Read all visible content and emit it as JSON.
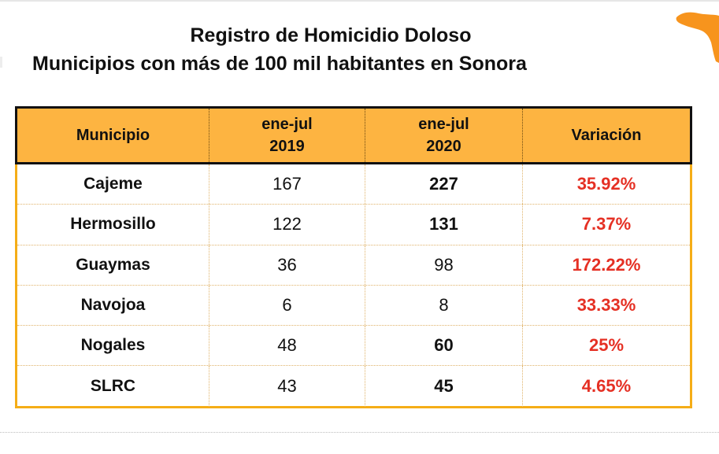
{
  "title": {
    "line1": "Registro de Homicidio Doloso",
    "line2": "Municipios con más de 100 mil habitantes en Sonora"
  },
  "table": {
    "headers": {
      "municipio": "Municipio",
      "y2019_line1": "ene-jul",
      "y2019_line2": "2019",
      "y2020_line1": "ene-jul",
      "y2020_line2": "2020",
      "variacion": "Variación"
    },
    "rows": [
      {
        "municipio": "Cajeme",
        "v2019": "167",
        "v2020": "227",
        "v2020_bold": true,
        "variacion": "35.92%"
      },
      {
        "municipio": "Hermosillo",
        "v2019": "122",
        "v2020": "131",
        "v2020_bold": true,
        "variacion": "7.37%"
      },
      {
        "municipio": "Guaymas",
        "v2019": "36",
        "v2020": "98",
        "v2020_bold": false,
        "variacion": "172.22%"
      },
      {
        "municipio": "Navojoa",
        "v2019": "6",
        "v2020": "8",
        "v2020_bold": false,
        "variacion": "33.33%"
      },
      {
        "municipio": "Nogales",
        "v2019": "48",
        "v2020": "60",
        "v2020_bold": true,
        "variacion": "25%"
      },
      {
        "municipio": "SLRC",
        "v2019": "43",
        "v2020": "45",
        "v2020_bold": true,
        "variacion": "4.65%"
      }
    ]
  },
  "colors": {
    "header_bg": "#fdb441",
    "frame": "#f5ad17",
    "variation_text": "#e53024",
    "map_accent": "#f7941d"
  },
  "icons": {
    "map": "sonora-map-icon"
  }
}
